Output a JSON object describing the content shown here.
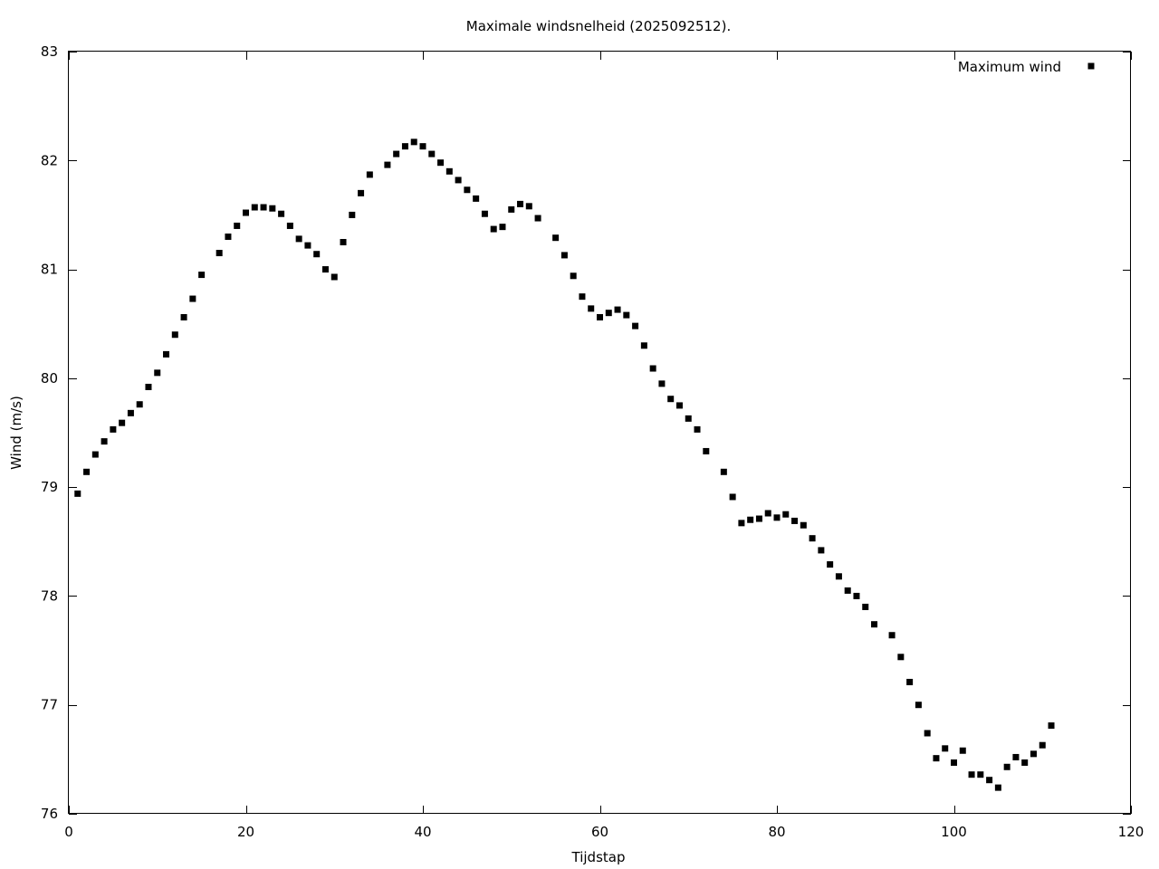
{
  "chart_data": {
    "type": "scatter",
    "title": "Maximale windsnelheid (2025092512).",
    "xlabel": "Tijdstap",
    "ylabel": "Wind (m/s)",
    "xlim": [
      0,
      120
    ],
    "ylim": [
      76,
      83
    ],
    "xticks": [
      "0",
      "20",
      "40",
      "60",
      "80",
      "100",
      "120"
    ],
    "yticks": [
      "76",
      "77",
      "78",
      "79",
      "80",
      "81",
      "82",
      "83"
    ],
    "grid": false,
    "legend_position": "top-right",
    "series": [
      {
        "name": "Maximum wind",
        "color": "#000000",
        "marker": "square",
        "points": [
          [
            1,
            78.94
          ],
          [
            2,
            79.14
          ],
          [
            3,
            79.3
          ],
          [
            4,
            79.42
          ],
          [
            5,
            79.53
          ],
          [
            6,
            79.59
          ],
          [
            7,
            79.68
          ],
          [
            8,
            79.76
          ],
          [
            9,
            79.92
          ],
          [
            10,
            80.05
          ],
          [
            11,
            80.22
          ],
          [
            12,
            80.4
          ],
          [
            13,
            80.56
          ],
          [
            14,
            80.73
          ],
          [
            15,
            80.95
          ],
          [
            17,
            81.15
          ],
          [
            18,
            81.3
          ],
          [
            19,
            81.4
          ],
          [
            20,
            81.52
          ],
          [
            21,
            81.57
          ],
          [
            22,
            81.57
          ],
          [
            23,
            81.56
          ],
          [
            24,
            81.51
          ],
          [
            25,
            81.4
          ],
          [
            26,
            81.28
          ],
          [
            27,
            81.22
          ],
          [
            28,
            81.14
          ],
          [
            29,
            81.0
          ],
          [
            30,
            80.93
          ],
          [
            31,
            81.25
          ],
          [
            32,
            81.5
          ],
          [
            33,
            81.7
          ],
          [
            34,
            81.87
          ],
          [
            36,
            81.96
          ],
          [
            37,
            82.06
          ],
          [
            38,
            82.13
          ],
          [
            39,
            82.17
          ],
          [
            40,
            82.13
          ],
          [
            41,
            82.06
          ],
          [
            42,
            81.98
          ],
          [
            43,
            81.9
          ],
          [
            44,
            81.82
          ],
          [
            45,
            81.73
          ],
          [
            46,
            81.65
          ],
          [
            47,
            81.51
          ],
          [
            48,
            81.37
          ],
          [
            49,
            81.39
          ],
          [
            50,
            81.55
          ],
          [
            51,
            81.6
          ],
          [
            52,
            81.58
          ],
          [
            53,
            81.47
          ],
          [
            55,
            81.29
          ],
          [
            56,
            81.13
          ],
          [
            57,
            80.94
          ],
          [
            58,
            80.75
          ],
          [
            59,
            80.64
          ],
          [
            60,
            80.56
          ],
          [
            61,
            80.6
          ],
          [
            62,
            80.63
          ],
          [
            63,
            80.58
          ],
          [
            64,
            80.48
          ],
          [
            65,
            80.3
          ],
          [
            66,
            80.09
          ],
          [
            67,
            79.95
          ],
          [
            68,
            79.81
          ],
          [
            69,
            79.75
          ],
          [
            70,
            79.63
          ],
          [
            71,
            79.53
          ],
          [
            72,
            79.33
          ],
          [
            74,
            79.14
          ],
          [
            75,
            78.91
          ],
          [
            76,
            78.67
          ],
          [
            77,
            78.7
          ],
          [
            78,
            78.71
          ],
          [
            79,
            78.76
          ],
          [
            80,
            78.72
          ],
          [
            81,
            78.75
          ],
          [
            82,
            78.69
          ],
          [
            83,
            78.65
          ],
          [
            84,
            78.53
          ],
          [
            85,
            78.42
          ],
          [
            86,
            78.29
          ],
          [
            87,
            78.18
          ],
          [
            88,
            78.05
          ],
          [
            89,
            78.0
          ],
          [
            90,
            77.9
          ],
          [
            91,
            77.74
          ],
          [
            93,
            77.64
          ],
          [
            94,
            77.44
          ],
          [
            95,
            77.21
          ],
          [
            96,
            77.0
          ],
          [
            97,
            76.74
          ],
          [
            98,
            76.51
          ],
          [
            99,
            76.6
          ],
          [
            100,
            76.47
          ],
          [
            101,
            76.58
          ],
          [
            102,
            76.36
          ],
          [
            103,
            76.36
          ],
          [
            104,
            76.31
          ],
          [
            105,
            76.24
          ],
          [
            106,
            76.43
          ],
          [
            107,
            76.52
          ],
          [
            108,
            76.47
          ],
          [
            109,
            76.55
          ],
          [
            110,
            76.63
          ],
          [
            111,
            76.81
          ]
        ]
      }
    ]
  }
}
